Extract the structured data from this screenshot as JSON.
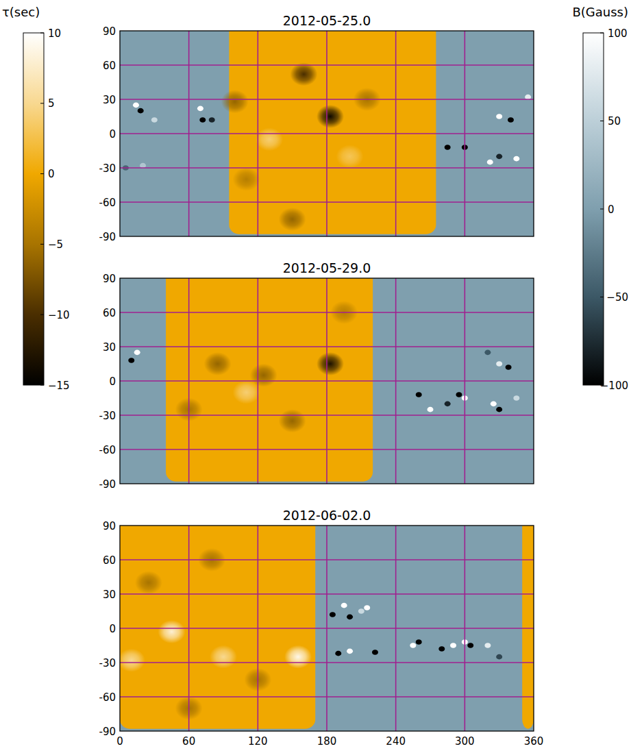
{
  "chart_data": [
    {
      "type": "heatmap",
      "title": "2012-05-25.0",
      "xlim": [
        0,
        360
      ],
      "xticks": [
        0,
        60,
        120,
        180,
        240,
        300,
        360
      ],
      "ylim": [
        -90,
        90
      ],
      "yticks": [
        -90,
        -60,
        -30,
        0,
        30,
        60,
        90
      ],
      "grid": true,
      "tick_labels": "y",
      "far_side_lon": [
        95,
        275
      ],
      "far_side_lat": [
        -88,
        90
      ],
      "tau_background": 0,
      "b_background": 0,
      "tau_features": [
        {
          "lon": 160,
          "lat": 52,
          "tau": -10
        },
        {
          "lon": 183,
          "lat": 15,
          "tau": -14
        },
        {
          "lon": 100,
          "lat": 28,
          "tau": -6
        },
        {
          "lon": 215,
          "lat": 30,
          "tau": -5
        },
        {
          "lon": 150,
          "lat": -75,
          "tau": -6
        },
        {
          "lon": 110,
          "lat": -40,
          "tau": -4
        },
        {
          "lon": 130,
          "lat": -5,
          "tau": 4
        },
        {
          "lon": 200,
          "lat": -20,
          "tau": 3
        }
      ],
      "magnetic_features": [
        {
          "lon": 18,
          "lat": 20,
          "b": -100
        },
        {
          "lon": 14,
          "lat": 25,
          "b": 100
        },
        {
          "lon": 30,
          "lat": 12,
          "b": 60
        },
        {
          "lon": 70,
          "lat": 22,
          "b": 100
        },
        {
          "lon": 72,
          "lat": 12,
          "b": -100
        },
        {
          "lon": 80,
          "lat": 12,
          "b": -80
        },
        {
          "lon": 330,
          "lat": 15,
          "b": 100
        },
        {
          "lon": 340,
          "lat": 12,
          "b": -100
        },
        {
          "lon": 285,
          "lat": -12,
          "b": -100
        },
        {
          "lon": 300,
          "lat": -12,
          "b": -100
        },
        {
          "lon": 322,
          "lat": -25,
          "b": 100
        },
        {
          "lon": 330,
          "lat": -20,
          "b": -80
        },
        {
          "lon": 345,
          "lat": -22,
          "b": 100
        },
        {
          "lon": 355,
          "lat": 32,
          "b": 80
        },
        {
          "lon": 5,
          "lat": -30,
          "b": -40
        },
        {
          "lon": 20,
          "lat": -28,
          "b": 40
        }
      ]
    },
    {
      "type": "heatmap",
      "title": "2012-05-29.0",
      "xlim": [
        0,
        360
      ],
      "xticks": [
        0,
        60,
        120,
        180,
        240,
        300,
        360
      ],
      "ylim": [
        -90,
        90
      ],
      "yticks": [
        -90,
        -60,
        -30,
        0,
        30,
        60,
        90
      ],
      "grid": true,
      "tick_labels": "y",
      "far_side_lon": [
        40,
        220
      ],
      "far_side_lat": [
        -88,
        90
      ],
      "tau_background": 0,
      "b_background": 0,
      "tau_features": [
        {
          "lon": 183,
          "lat": 15,
          "tau": -13
        },
        {
          "lon": 125,
          "lat": 5,
          "tau": -6
        },
        {
          "lon": 85,
          "lat": 15,
          "tau": -6
        },
        {
          "lon": 150,
          "lat": -35,
          "tau": -6
        },
        {
          "lon": 60,
          "lat": -25,
          "tau": -5
        },
        {
          "lon": 195,
          "lat": 60,
          "tau": -4
        },
        {
          "lon": 110,
          "lat": -10,
          "tau": 4
        }
      ],
      "magnetic_features": [
        {
          "lon": 15,
          "lat": 25,
          "b": 100
        },
        {
          "lon": 10,
          "lat": 18,
          "b": -100
        },
        {
          "lon": 260,
          "lat": -12,
          "b": -100
        },
        {
          "lon": 270,
          "lat": -25,
          "b": 100
        },
        {
          "lon": 285,
          "lat": -20,
          "b": -80
        },
        {
          "lon": 295,
          "lat": -12,
          "b": -100
        },
        {
          "lon": 300,
          "lat": -15,
          "b": 100
        },
        {
          "lon": 325,
          "lat": -20,
          "b": 100
        },
        {
          "lon": 330,
          "lat": -25,
          "b": -100
        },
        {
          "lon": 338,
          "lat": 12,
          "b": -100
        },
        {
          "lon": 330,
          "lat": 15,
          "b": 80
        },
        {
          "lon": 345,
          "lat": -15,
          "b": 60
        },
        {
          "lon": 320,
          "lat": 25,
          "b": -50
        }
      ]
    },
    {
      "type": "heatmap",
      "title": "2012-06-02.0",
      "xlim": [
        0,
        360
      ],
      "xticks": [
        0,
        60,
        120,
        180,
        240,
        300,
        360
      ],
      "ylim": [
        -90,
        90
      ],
      "yticks": [
        -90,
        -60,
        -30,
        0,
        30,
        60,
        90
      ],
      "grid": true,
      "tick_labels": true,
      "far_side_lon": [
        350,
        170
      ],
      "far_side_lat": [
        -88,
        90
      ],
      "tau_background": 0,
      "b_background": 0,
      "tau_features": [
        {
          "lon": 45,
          "lat": -3,
          "tau": 8
        },
        {
          "lon": 155,
          "lat": -25,
          "tau": 9
        },
        {
          "lon": 10,
          "lat": -28,
          "tau": 5
        },
        {
          "lon": 90,
          "lat": -25,
          "tau": 5
        },
        {
          "lon": 25,
          "lat": 40,
          "tau": -5
        },
        {
          "lon": 80,
          "lat": 60,
          "tau": -5
        },
        {
          "lon": 120,
          "lat": -45,
          "tau": -5
        },
        {
          "lon": 60,
          "lat": -70,
          "tau": -5
        }
      ],
      "magnetic_features": [
        {
          "lon": 185,
          "lat": 12,
          "b": -100
        },
        {
          "lon": 195,
          "lat": 20,
          "b": 100
        },
        {
          "lon": 200,
          "lat": 10,
          "b": -100
        },
        {
          "lon": 210,
          "lat": 15,
          "b": 60
        },
        {
          "lon": 215,
          "lat": 18,
          "b": 100
        },
        {
          "lon": 190,
          "lat": -22,
          "b": -100
        },
        {
          "lon": 200,
          "lat": -20,
          "b": 100
        },
        {
          "lon": 222,
          "lat": -21,
          "b": -100
        },
        {
          "lon": 255,
          "lat": -15,
          "b": 100
        },
        {
          "lon": 260,
          "lat": -12,
          "b": -100
        },
        {
          "lon": 280,
          "lat": -18,
          "b": -100
        },
        {
          "lon": 290,
          "lat": -15,
          "b": 100
        },
        {
          "lon": 300,
          "lat": -12,
          "b": 100
        },
        {
          "lon": 305,
          "lat": -15,
          "b": -100
        },
        {
          "lon": 330,
          "lat": -25,
          "b": -60
        },
        {
          "lon": 320,
          "lat": -15,
          "b": 80
        }
      ]
    }
  ],
  "colorbars": [
    {
      "label": "τ(sec)",
      "range": [
        -15,
        10
      ],
      "ticks": [
        10,
        5,
        0,
        {
          "value": -5,
          "label": "−5"
        },
        {
          "value": -10,
          "label": "−10"
        },
        {
          "value": -15,
          "label": "−15"
        }
      ]
    },
    {
      "label": "B(Gauss)",
      "range": [
        -100,
        100
      ],
      "ticks": [
        100,
        50,
        0,
        {
          "value": -50,
          "label": "−50"
        },
        {
          "value": -100,
          "label": "−100"
        }
      ]
    }
  ]
}
